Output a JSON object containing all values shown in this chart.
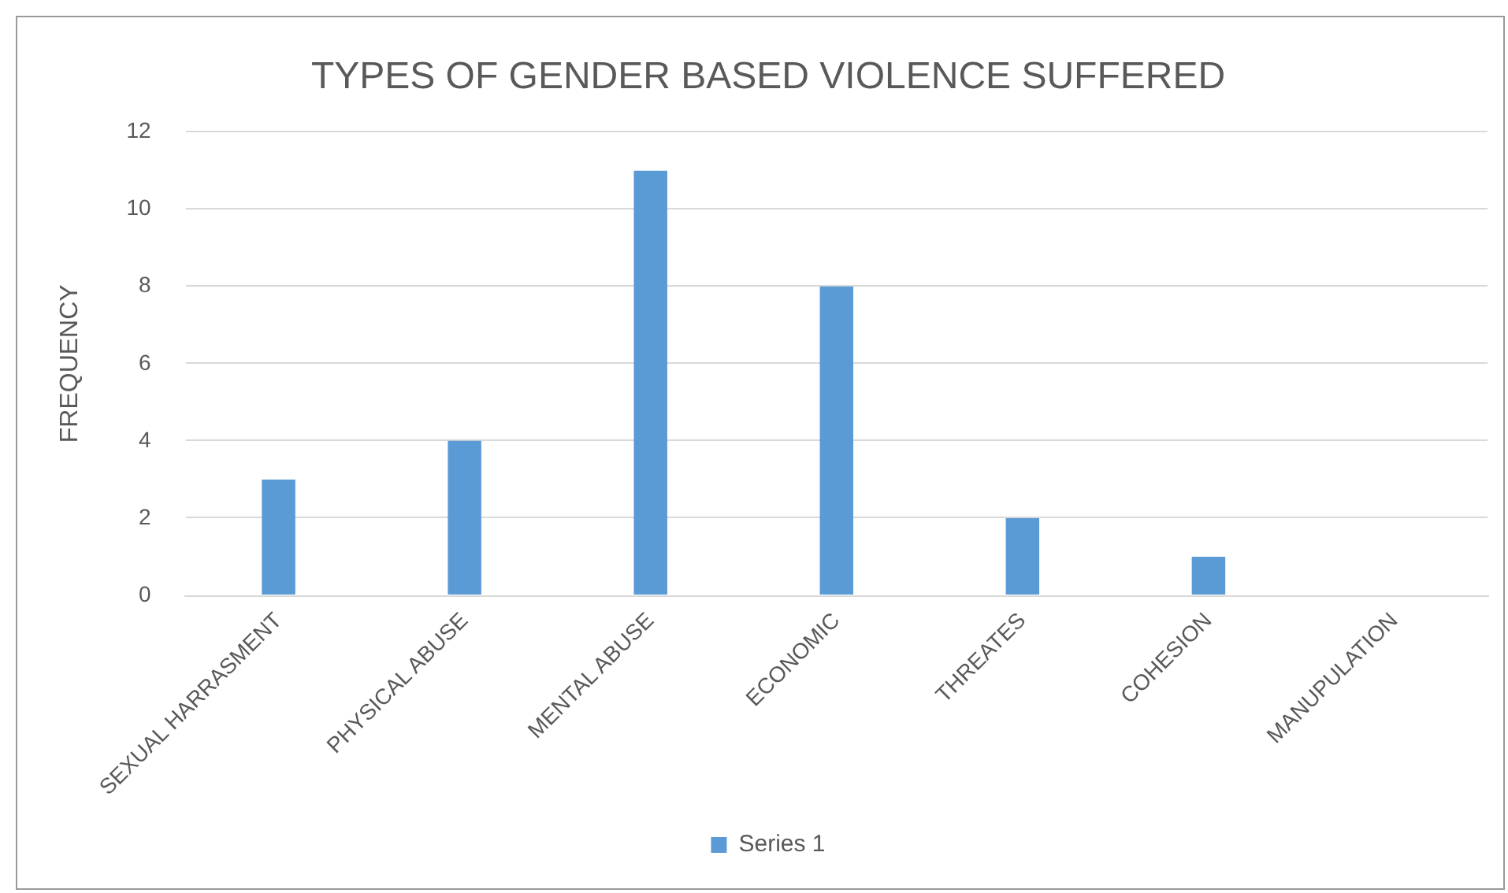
{
  "chart_data": {
    "type": "bar",
    "title": "TYPES OF GENDER BASED VIOLENCE SUFFERED",
    "ylabel": "FREQUENCY",
    "categories": [
      "SEXUAL HARRASMENT",
      "PHYSICAL ABUSE",
      "MENTAL ABUSE",
      "ECONOMIC",
      "THREATES",
      "COHESION",
      "MANUPULATION"
    ],
    "series": [
      {
        "name": "Series 1",
        "color": "#5b9bd5",
        "values": [
          3,
          4,
          11,
          8,
          2,
          1,
          0
        ]
      }
    ],
    "ylim": [
      0,
      12
    ],
    "yticks": [
      0,
      2,
      4,
      6,
      8,
      10,
      12
    ],
    "grid": "y",
    "legend": "bottom"
  }
}
